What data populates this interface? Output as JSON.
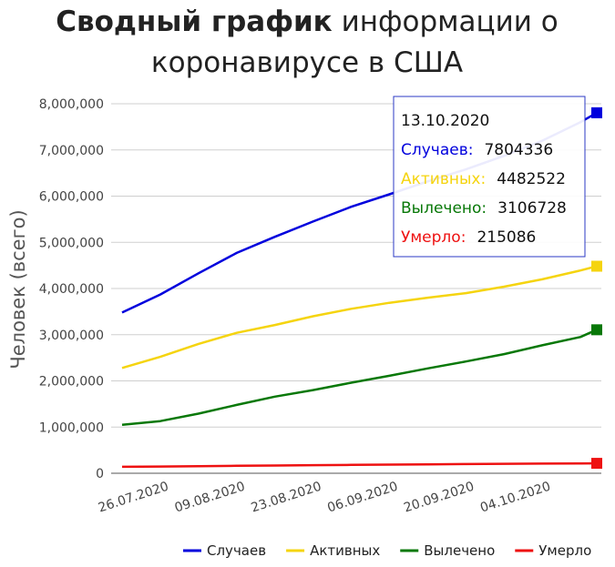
{
  "chart_data": {
    "type": "line",
    "title_bold": "Сводный график",
    "title_rest_line1": " информации о",
    "title_line2": "коронавирусе в США",
    "ylabel": "Человек (всего)",
    "xlabel": "",
    "x_start": "2020-07-18",
    "x_end": "2020-10-13",
    "ylim": [
      0,
      8000000
    ],
    "y_ticks": [
      "0",
      "1,000,000",
      "2,000,000",
      "3,000,000",
      "4,000,000",
      "5,000,000",
      "6,000,000",
      "7,000,000",
      "8,000,000"
    ],
    "x_ticks": [
      "26.07.2020",
      "09.08.2020",
      "23.08.2020",
      "06.09.2020",
      "20.09.2020",
      "04.10.2020"
    ],
    "grid": true,
    "legend_position": "bottom-right",
    "colors": {
      "cases": "#0000dd",
      "active": "#f5d40f",
      "recovered": "#087808",
      "deaths": "#ee1111"
    },
    "series": [
      {
        "key": "cases",
        "name": "Случаев",
        "x": [
          "2020-07-18",
          "2020-07-25",
          "2020-08-01",
          "2020-08-08",
          "2020-08-15",
          "2020-08-22",
          "2020-08-29",
          "2020-09-05",
          "2020-09-12",
          "2020-09-19",
          "2020-09-26",
          "2020-10-03",
          "2020-10-10",
          "2020-10-13"
        ],
        "values": [
          3480000,
          3870000,
          4330000,
          4770000,
          5120000,
          5450000,
          5770000,
          6040000,
          6320000,
          6580000,
          6870000,
          7200000,
          7600000,
          7804336
        ]
      },
      {
        "key": "active",
        "name": "Активных",
        "x": [
          "2020-07-18",
          "2020-07-25",
          "2020-08-01",
          "2020-08-08",
          "2020-08-15",
          "2020-08-22",
          "2020-08-29",
          "2020-09-05",
          "2020-09-12",
          "2020-09-19",
          "2020-09-26",
          "2020-10-03",
          "2020-10-10",
          "2020-10-13"
        ],
        "values": [
          2280000,
          2520000,
          2800000,
          3040000,
          3210000,
          3400000,
          3560000,
          3690000,
          3800000,
          3900000,
          4040000,
          4200000,
          4390000,
          4482522
        ]
      },
      {
        "key": "recovered",
        "name": "Вылечено",
        "x": [
          "2020-07-18",
          "2020-07-25",
          "2020-08-01",
          "2020-08-08",
          "2020-08-15",
          "2020-08-22",
          "2020-08-29",
          "2020-09-05",
          "2020-09-12",
          "2020-09-19",
          "2020-09-26",
          "2020-10-03",
          "2020-10-10",
          "2020-10-13"
        ],
        "values": [
          1050000,
          1130000,
          1290000,
          1480000,
          1660000,
          1800000,
          1960000,
          2110000,
          2270000,
          2420000,
          2580000,
          2770000,
          2950000,
          3106728
        ]
      },
      {
        "key": "deaths",
        "name": "Умерло",
        "x": [
          "2020-07-18",
          "2020-07-25",
          "2020-08-01",
          "2020-08-08",
          "2020-08-15",
          "2020-08-22",
          "2020-08-29",
          "2020-09-05",
          "2020-09-12",
          "2020-09-19",
          "2020-09-26",
          "2020-10-03",
          "2020-10-10",
          "2020-10-13"
        ],
        "values": [
          140000,
          146000,
          153000,
          161000,
          168000,
          175000,
          182000,
          188000,
          194000,
          199000,
          204000,
          209000,
          213000,
          215086
        ]
      }
    ],
    "tooltip": {
      "date": "13.10.2020",
      "rows": [
        {
          "key": "cases",
          "label": "Случаев:",
          "value": "7804336"
        },
        {
          "key": "active",
          "label": "Активных:",
          "value": "4482522"
        },
        {
          "key": "recovered",
          "label": "Вылечено:",
          "value": "3106728"
        },
        {
          "key": "deaths",
          "label": "Умерло:",
          "value": "215086"
        }
      ]
    }
  }
}
